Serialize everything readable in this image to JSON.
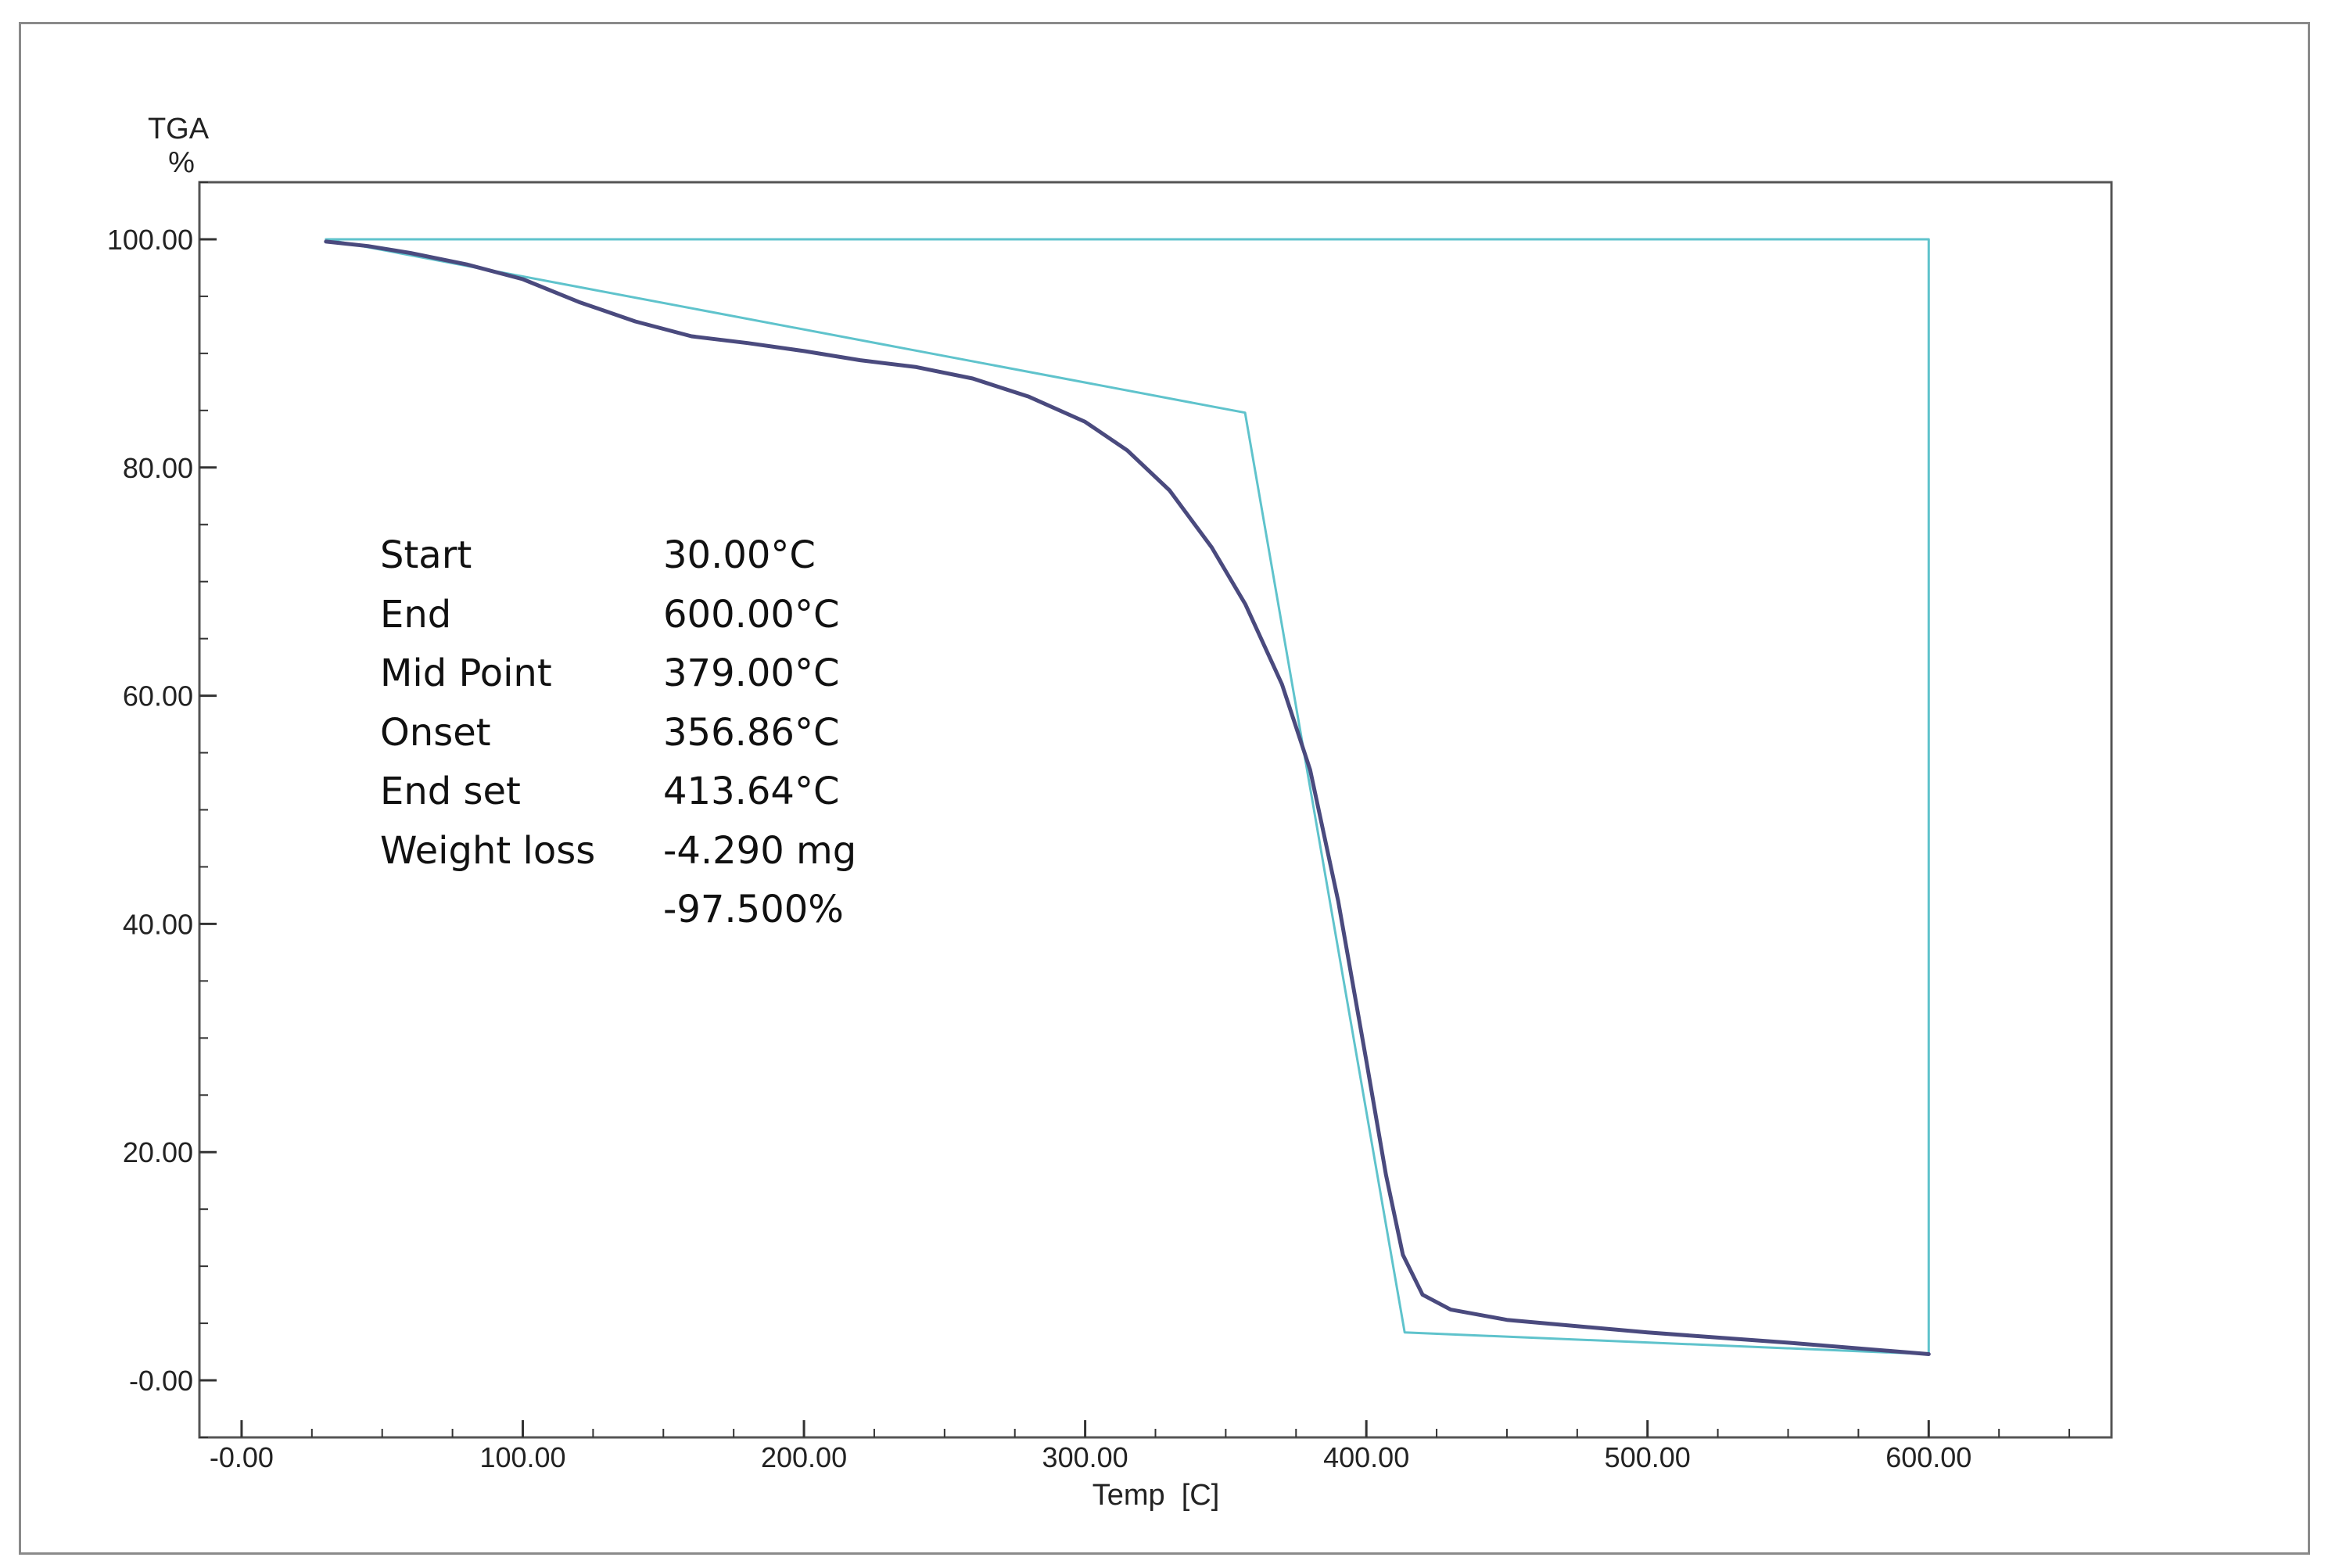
{
  "chart_data": {
    "type": "line",
    "title": "",
    "ylabel_line1": "TGA",
    "ylabel_line2": "%",
    "xlabel": "Temp  [C]",
    "xlim": [
      -15,
      665
    ],
    "ylim": [
      -5,
      105
    ],
    "x_ticks": [
      0,
      100,
      200,
      300,
      400,
      500,
      600
    ],
    "x_tick_labels": [
      "-0.00",
      "100.00",
      "200.00",
      "300.00",
      "400.00",
      "500.00",
      "600.00"
    ],
    "y_ticks": [
      0,
      20,
      40,
      60,
      80,
      100
    ],
    "y_tick_labels": [
      "-0.00",
      "20.00",
      "40.00",
      "60.00",
      "80.00",
      "100.00"
    ],
    "grid": false,
    "series": [
      {
        "color": "#4a4a7e",
        "x": [
          30,
          45,
          60,
          80,
          100,
          120,
          140,
          160,
          180,
          200,
          220,
          240,
          260,
          280,
          300,
          315,
          330,
          345,
          357,
          370,
          380,
          390,
          400,
          407,
          413,
          420,
          430,
          450,
          500,
          550,
          600
        ],
        "y": [
          99.8,
          99.4,
          98.8,
          97.8,
          96.5,
          94.5,
          92.8,
          91.5,
          90.9,
          90.2,
          89.4,
          88.8,
          87.8,
          86.2,
          84.0,
          81.5,
          78.0,
          73.0,
          68.0,
          61.0,
          53.5,
          42.0,
          28.0,
          18.0,
          11.0,
          7.5,
          6.2,
          5.3,
          4.2,
          3.3,
          2.3
        ]
      },
      {
        "color": "#5fc3cc",
        "x": [
          30,
          600,
          600,
          413.64,
          356.86,
          30
        ],
        "y": [
          100,
          100,
          2.3,
          4.2,
          84.8,
          100
        ]
      }
    ]
  },
  "info_panel": {
    "rows": [
      {
        "label": "Start",
        "value": "30.00°C"
      },
      {
        "label": "End",
        "value": "600.00°C"
      },
      {
        "label": "Mid Point",
        "value": "379.00°C"
      },
      {
        "label": "Onset",
        "value": "356.86°C"
      },
      {
        "label": "End set",
        "value": "413.64°C"
      },
      {
        "label": "Weight loss",
        "value": "-4.290 mg"
      },
      {
        "label": "",
        "value": "-97.500%"
      }
    ]
  }
}
